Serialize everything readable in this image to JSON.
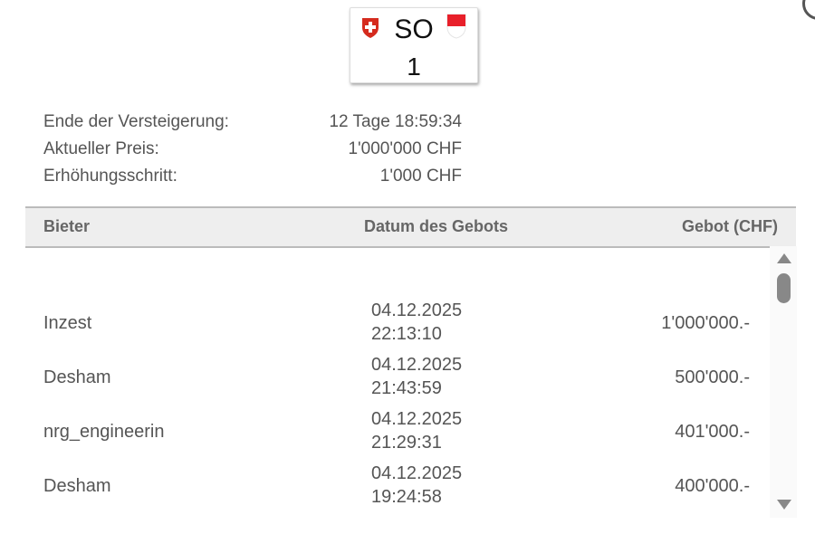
{
  "plate": {
    "canton": "SO",
    "number": "1"
  },
  "info": [
    {
      "label": "Ende der Versteigerung:",
      "value": "12 Tage 18:59:34"
    },
    {
      "label": "Aktueller Preis:",
      "value": "1'000'000 CHF"
    },
    {
      "label": "Erhöhungsschritt:",
      "value": "1'000 CHF"
    }
  ],
  "table": {
    "headers": {
      "bidder": "Bieter",
      "date": "Datum des Gebots",
      "bid": "Gebot (CHF)"
    },
    "rows": [
      {
        "bidder": "Inzest",
        "date": "04.12.2025",
        "time": "22:13:10",
        "bid": "1'000'000.-"
      },
      {
        "bidder": "Desham",
        "date": "04.12.2025",
        "time": "21:43:59",
        "bid": "500'000.-"
      },
      {
        "bidder": "nrg_engineerin",
        "date": "04.12.2025",
        "time": "21:29:31",
        "bid": "401'000.-"
      },
      {
        "bidder": "Desham",
        "date": "04.12.2025",
        "time": "19:24:58",
        "bid": "400'000.-"
      }
    ]
  }
}
